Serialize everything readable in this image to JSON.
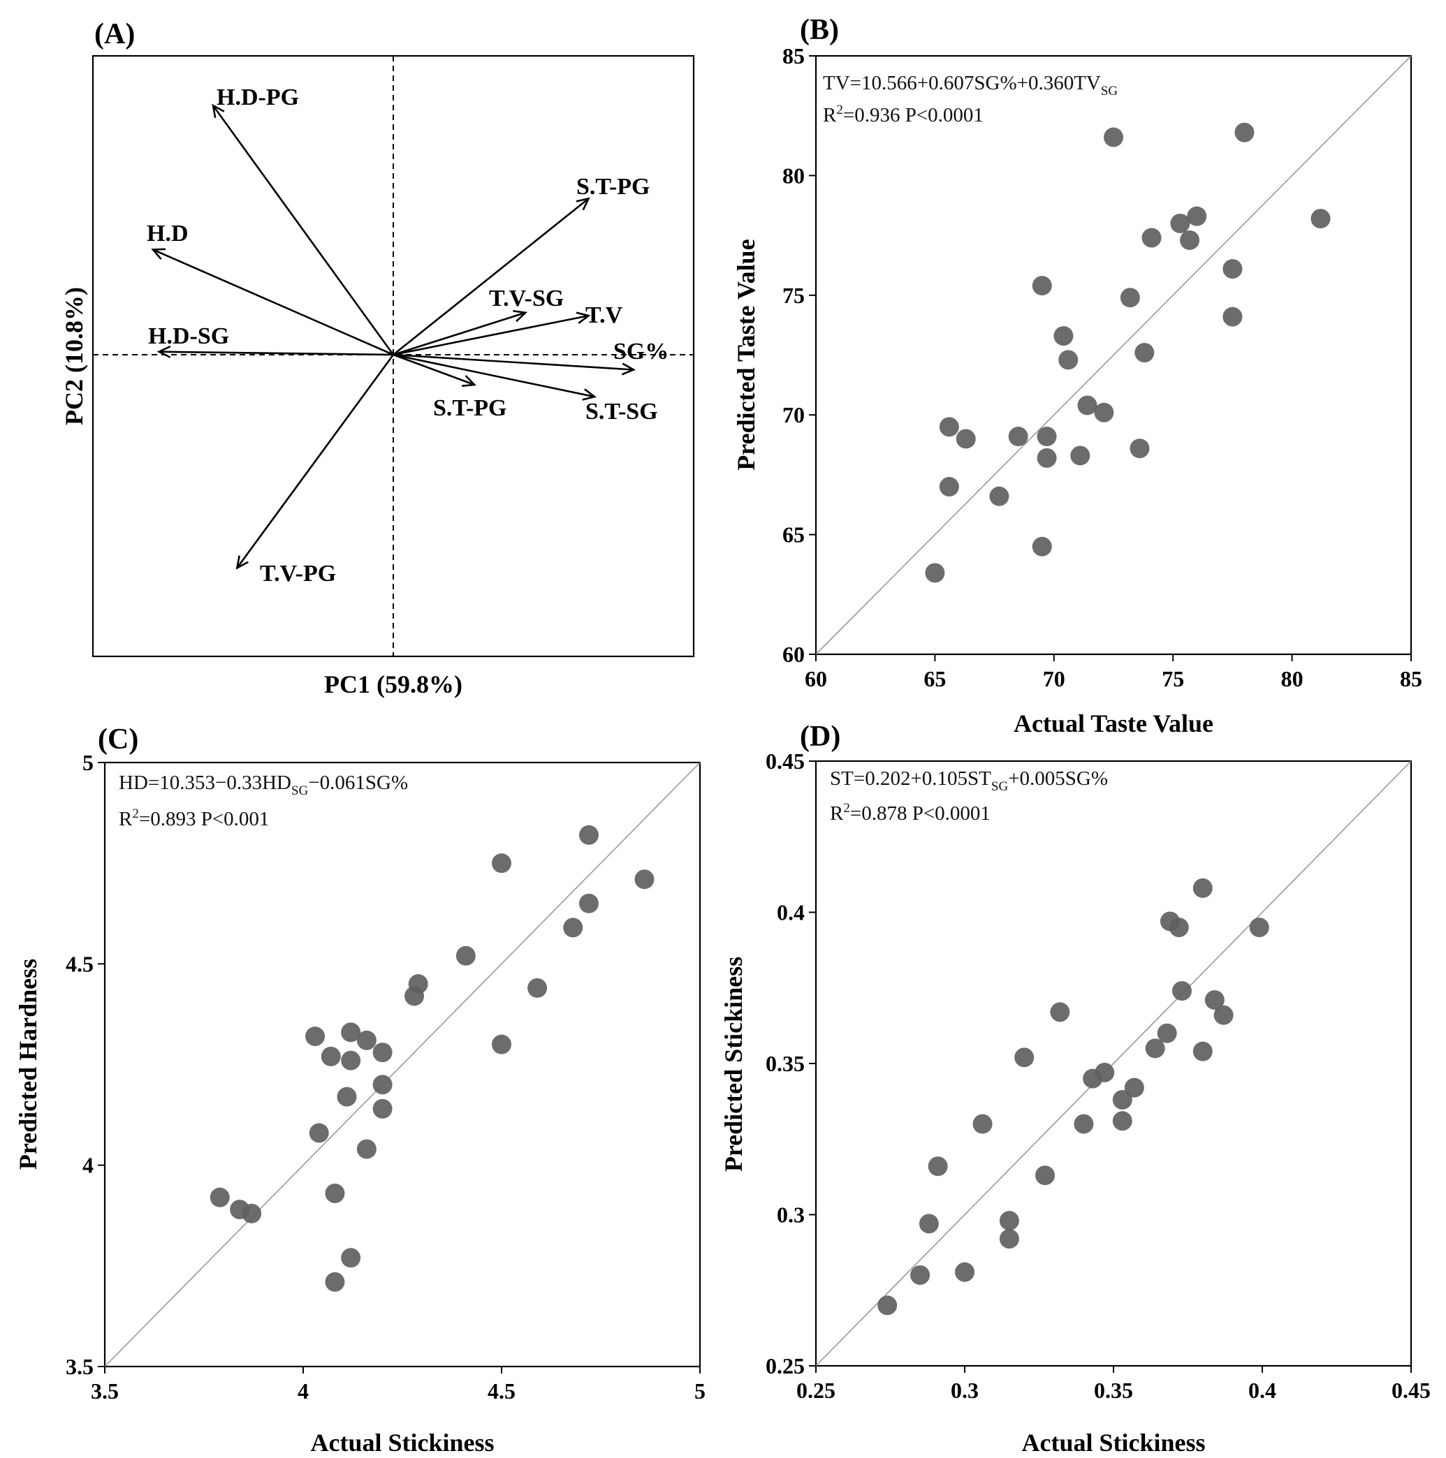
{
  "chart_data": [
    {
      "panel": "(A)",
      "type": "biplot",
      "xlabel": "PC1 (59.8%)",
      "ylabel": "PC2 (10.8%)",
      "xlim": [
        -1,
        1
      ],
      "ylim": [
        -1,
        1
      ],
      "vectors": [
        {
          "name": "H.D-PG",
          "x": -0.6,
          "y": 0.83
        },
        {
          "name": "H.D",
          "x": -0.8,
          "y": 0.35
        },
        {
          "name": "H.D-SG",
          "x": -0.78,
          "y": 0.01
        },
        {
          "name": "T.V-PG",
          "x": -0.52,
          "y": -0.71
        },
        {
          "name": "S.T-PG",
          "x": 0.65,
          "y": 0.52
        },
        {
          "name": "T.V-SG",
          "x": 0.44,
          "y": 0.14
        },
        {
          "name": "T.V",
          "x": 0.65,
          "y": 0.13
        },
        {
          "name": "SG%",
          "x": 0.8,
          "y": -0.05
        },
        {
          "name": "S.T-PG",
          "x": 0.27,
          "y": -0.1
        },
        {
          "name": "S.T-SG",
          "x": 0.67,
          "y": -0.14
        }
      ]
    },
    {
      "panel": "(B)",
      "type": "scatter",
      "xlabel": "Actual Taste Value",
      "ylabel": "Predicted Taste Value",
      "xlim": [
        60,
        85
      ],
      "ylim": [
        60,
        85
      ],
      "xticks": [
        60,
        65,
        70,
        75,
        80,
        85
      ],
      "yticks": [
        60,
        65,
        70,
        75,
        80,
        85
      ],
      "xtick_labels": [
        "60",
        "65",
        "70",
        "75",
        "80",
        "85"
      ],
      "ytick_labels": [
        "60",
        "65",
        "70",
        "75",
        "80",
        "85"
      ],
      "equation": {
        "pre": "TV=10.566+0.607SG%+0.360TV",
        "sub": "SG",
        "post": ""
      },
      "r2": {
        "pre": "R",
        "sup": "2",
        "post": "=0.936 P<0.0001"
      },
      "points": [
        [
          65.0,
          63.4
        ],
        [
          65.6,
          67.0
        ],
        [
          65.6,
          69.5
        ],
        [
          66.3,
          69.0
        ],
        [
          67.7,
          66.6
        ],
        [
          68.5,
          69.1
        ],
        [
          69.5,
          64.5
        ],
        [
          69.5,
          75.4
        ],
        [
          69.7,
          68.2
        ],
        [
          69.7,
          69.1
        ],
        [
          70.4,
          73.3
        ],
        [
          70.6,
          72.3
        ],
        [
          71.1,
          68.3
        ],
        [
          71.4,
          70.4
        ],
        [
          72.1,
          70.1
        ],
        [
          72.5,
          81.6
        ],
        [
          73.2,
          74.9
        ],
        [
          73.6,
          68.6
        ],
        [
          73.8,
          72.6
        ],
        [
          74.1,
          77.4
        ],
        [
          75.3,
          78.0
        ],
        [
          75.7,
          77.3
        ],
        [
          76.0,
          78.3
        ],
        [
          77.5,
          76.1
        ],
        [
          77.5,
          74.1
        ],
        [
          78.0,
          81.8
        ],
        [
          81.2,
          78.2
        ]
      ]
    },
    {
      "panel": "(C)",
      "type": "scatter",
      "xlabel": "Actual Stickiness",
      "ylabel": "Predicted Hardness",
      "xlim": [
        3.5,
        5
      ],
      "ylim": [
        3.5,
        5
      ],
      "xticks": [
        3.5,
        4,
        4.5,
        5
      ],
      "yticks": [
        3.5,
        4,
        4.5,
        5
      ],
      "xtick_labels": [
        "3.5",
        "4",
        "4.5",
        "5"
      ],
      "ytick_labels": [
        "3.5",
        "4",
        "4.5",
        "5"
      ],
      "equation": {
        "pre": "HD=10.353−0.33HD",
        "sub": "SG",
        "post": "−0.061SG%"
      },
      "r2": {
        "pre": "R",
        "sup": "2",
        "post": "=0.893 P<0.001"
      },
      "points": [
        [
          3.79,
          3.92
        ],
        [
          3.84,
          3.89
        ],
        [
          3.87,
          3.88
        ],
        [
          4.03,
          4.32
        ],
        [
          4.04,
          4.08
        ],
        [
          4.07,
          4.27
        ],
        [
          4.08,
          3.93
        ],
        [
          4.08,
          3.71
        ],
        [
          4.11,
          4.17
        ],
        [
          4.12,
          4.33
        ],
        [
          4.12,
          4.26
        ],
        [
          4.12,
          3.77
        ],
        [
          4.16,
          4.04
        ],
        [
          4.16,
          4.31
        ],
        [
          4.2,
          4.28
        ],
        [
          4.2,
          4.2
        ],
        [
          4.2,
          4.14
        ],
        [
          4.28,
          4.42
        ],
        [
          4.29,
          4.45
        ],
        [
          4.41,
          4.52
        ],
        [
          4.5,
          4.75
        ],
        [
          4.5,
          4.3
        ],
        [
          4.59,
          4.44
        ],
        [
          4.68,
          4.59
        ],
        [
          4.72,
          4.65
        ],
        [
          4.72,
          4.82
        ],
        [
          4.86,
          4.71
        ]
      ]
    },
    {
      "panel": "(D)",
      "type": "scatter",
      "xlabel": "Actual Stickiness",
      "ylabel": "Predicted Stickiness",
      "xlim": [
        0.25,
        0.45
      ],
      "ylim": [
        0.25,
        0.45
      ],
      "xticks": [
        0.25,
        0.3,
        0.35,
        0.4,
        0.45
      ],
      "yticks": [
        0.25,
        0.3,
        0.35,
        0.4,
        0.45
      ],
      "xtick_labels": [
        "0.25",
        "0.3",
        "0.35",
        "0.4",
        "0.45"
      ],
      "ytick_labels": [
        "0.25",
        "0.3",
        "0.35",
        "0.4",
        "0.45"
      ],
      "equation": {
        "pre": "ST=0.202+0.105ST",
        "sub": "SG",
        "post": "+0.005SG%"
      },
      "r2": {
        "pre": "R",
        "sup": "2",
        "post": "=0.878 P<0.0001"
      },
      "points": [
        [
          0.274,
          0.27
        ],
        [
          0.285,
          0.28
        ],
        [
          0.288,
          0.297
        ],
        [
          0.291,
          0.316
        ],
        [
          0.3,
          0.281
        ],
        [
          0.306,
          0.33
        ],
        [
          0.315,
          0.292
        ],
        [
          0.315,
          0.298
        ],
        [
          0.32,
          0.352
        ],
        [
          0.327,
          0.313
        ],
        [
          0.332,
          0.367
        ],
        [
          0.34,
          0.33
        ],
        [
          0.343,
          0.345
        ],
        [
          0.347,
          0.347
        ],
        [
          0.353,
          0.338
        ],
        [
          0.353,
          0.331
        ],
        [
          0.357,
          0.342
        ],
        [
          0.364,
          0.355
        ],
        [
          0.368,
          0.36
        ],
        [
          0.369,
          0.397
        ],
        [
          0.372,
          0.395
        ],
        [
          0.373,
          0.374
        ],
        [
          0.38,
          0.354
        ],
        [
          0.38,
          0.408
        ],
        [
          0.384,
          0.371
        ],
        [
          0.387,
          0.366
        ],
        [
          0.399,
          0.395
        ]
      ]
    }
  ]
}
